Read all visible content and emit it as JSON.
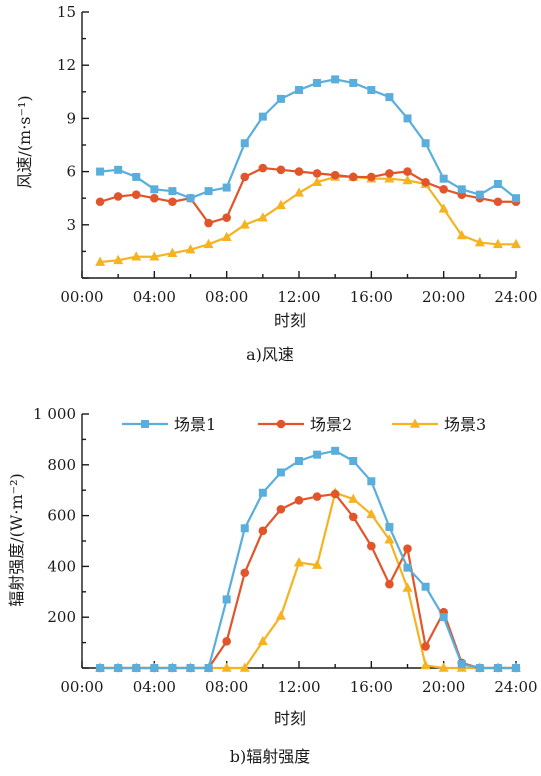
{
  "chart_data": [
    {
      "type": "line",
      "caption": "a)风速",
      "xlabel": "时刻",
      "ylabel": "风速/(m·s⁻¹)",
      "x_ticks": [
        "00:00",
        "04:00",
        "08:00",
        "12:00",
        "16:00",
        "20:00",
        "24:00"
      ],
      "y_ticks": [
        "3",
        "6",
        "9",
        "12",
        "15"
      ],
      "xlim": [
        0,
        24
      ],
      "ylim": [
        0,
        15
      ],
      "grid": false,
      "x": [
        1,
        2,
        3,
        4,
        5,
        6,
        7,
        8,
        9,
        10,
        11,
        12,
        13,
        14,
        15,
        16,
        17,
        18,
        19,
        20,
        21,
        22,
        23,
        24
      ],
      "series": [
        {
          "name": "场景1",
          "color": "#5aaedc",
          "marker": "square",
          "values": [
            6.0,
            6.1,
            5.7,
            5.0,
            4.9,
            4.5,
            4.9,
            5.1,
            7.6,
            9.1,
            10.1,
            10.6,
            11.0,
            11.2,
            11.0,
            10.6,
            10.2,
            9.0,
            7.6,
            5.6,
            5.0,
            4.7,
            5.3,
            4.5
          ]
        },
        {
          "name": "场景2",
          "color": "#e2552a",
          "marker": "circle",
          "values": [
            4.3,
            4.6,
            4.7,
            4.5,
            4.3,
            4.5,
            3.1,
            3.4,
            5.7,
            6.2,
            6.1,
            6.0,
            5.9,
            5.8,
            5.7,
            5.7,
            5.9,
            6.0,
            5.4,
            5.0,
            4.7,
            4.5,
            4.3,
            4.3
          ]
        },
        {
          "name": "场景3",
          "color": "#f5b320",
          "marker": "triangle",
          "values": [
            0.9,
            1.0,
            1.2,
            1.2,
            1.4,
            1.6,
            1.9,
            2.3,
            3.0,
            3.4,
            4.1,
            4.8,
            5.4,
            5.7,
            5.7,
            5.6,
            5.6,
            5.5,
            5.3,
            3.9,
            2.4,
            2.0,
            1.9,
            1.9
          ]
        }
      ]
    },
    {
      "type": "line",
      "caption": "b)辐射强度",
      "xlabel": "时刻",
      "ylabel": "辐射强度/(W·m⁻²)",
      "x_ticks": [
        "00:00",
        "04:00",
        "08:00",
        "12:00",
        "16:00",
        "20:00",
        "24:00"
      ],
      "y_ticks": [
        "200",
        "400",
        "600",
        "800",
        "1 000"
      ],
      "xlim": [
        0,
        24
      ],
      "ylim": [
        0,
        1000
      ],
      "grid": false,
      "legend_position": "top",
      "x": [
        1,
        2,
        3,
        4,
        5,
        6,
        7,
        8,
        9,
        10,
        11,
        12,
        13,
        14,
        15,
        16,
        17,
        18,
        19,
        20,
        21,
        22,
        23,
        24
      ],
      "series": [
        {
          "name": "场景1",
          "color": "#5aaedc",
          "marker": "square",
          "values": [
            0,
            0,
            0,
            0,
            0,
            0,
            0,
            270,
            550,
            690,
            770,
            815,
            840,
            855,
            815,
            735,
            555,
            395,
            320,
            200,
            15,
            0,
            0,
            0
          ]
        },
        {
          "name": "场景2",
          "color": "#e2552a",
          "marker": "circle",
          "values": [
            0,
            0,
            0,
            0,
            0,
            0,
            0,
            105,
            375,
            540,
            625,
            660,
            675,
            685,
            595,
            480,
            330,
            470,
            85,
            220,
            20,
            0,
            0,
            0
          ]
        },
        {
          "name": "场景3",
          "color": "#f5b320",
          "marker": "triangle",
          "values": [
            0,
            0,
            0,
            0,
            0,
            0,
            0,
            0,
            0,
            105,
            205,
            415,
            405,
            690,
            665,
            605,
            505,
            315,
            10,
            0,
            0,
            0,
            0,
            0
          ]
        }
      ]
    }
  ]
}
